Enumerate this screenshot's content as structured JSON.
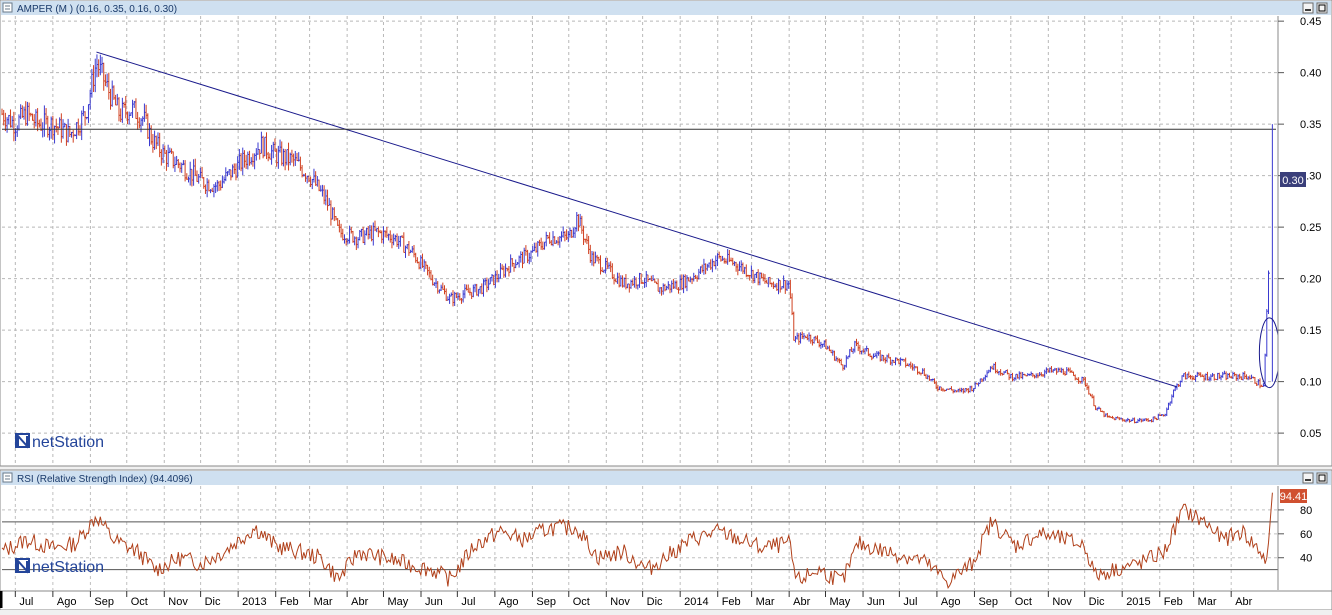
{
  "panels": {
    "price": {
      "title": "AMPER (M ) (0.16, 0.35, 0.16, 0.30)",
      "current_value": "0.30",
      "watermark": "netStation"
    },
    "rsi": {
      "title": "RSI (Relative Strength Index) (94.4096)",
      "current_value": "94.41",
      "watermark": "netStation"
    }
  },
  "colors": {
    "bar_up": "#3a3ad0",
    "bar_down": "#d04020",
    "trendline": "#1a1a8c",
    "rsi_line": "#b0401a",
    "value_badge_price": "#3a3f7a",
    "value_badge_rsi": "#d05030",
    "panel_header": "#cfe0f0",
    "watermark": "#24459a"
  },
  "chart_data": [
    {
      "type": "ohlc",
      "title": "AMPER (M ) (0.16, 0.35, 0.16, 0.30)",
      "y_ticks": [
        "0.05",
        "0.10",
        "0.15",
        "0.20",
        "0.25",
        "0.30",
        "0.35",
        "0.40",
        "0.45"
      ],
      "ylim": [
        0.02,
        0.455
      ],
      "grid": true,
      "x_ticks": [
        "Jul",
        "Ago",
        "Sep",
        "Oct",
        "Nov",
        "Dic",
        "2013",
        "Feb",
        "Mar",
        "Abr",
        "May",
        "Jun",
        "Jul",
        "Ago",
        "Sep",
        "Oct",
        "Nov",
        "Dic",
        "2014",
        "Feb",
        "Mar",
        "Abr",
        "May",
        "Jun",
        "Jul",
        "Ago",
        "Sep",
        "Oct",
        "Nov",
        "Dic",
        "2015",
        "Feb",
        "Mar",
        "Abr"
      ],
      "x_range": [
        "2012-06-20",
        "2015-05-08"
      ],
      "close_series": [
        [
          "2012-06-20",
          0.36
        ],
        [
          "2012-07-01",
          0.35
        ],
        [
          "2012-07-10",
          0.36
        ],
        [
          "2012-07-20",
          0.35
        ],
        [
          "2012-08-01",
          0.35
        ],
        [
          "2012-08-15",
          0.34
        ],
        [
          "2012-08-28",
          0.36
        ],
        [
          "2012-09-06",
          0.41
        ],
        [
          "2012-09-15",
          0.385
        ],
        [
          "2012-09-25",
          0.36
        ],
        [
          "2012-10-05",
          0.365
        ],
        [
          "2012-10-15",
          0.355
        ],
        [
          "2012-10-22",
          0.335
        ],
        [
          "2012-11-01",
          0.32
        ],
        [
          "2012-11-15",
          0.31
        ],
        [
          "2012-12-01",
          0.295
        ],
        [
          "2012-12-15",
          0.29
        ],
        [
          "2012-12-28",
          0.305
        ],
        [
          "2013-01-10",
          0.32
        ],
        [
          "2013-01-20",
          0.33
        ],
        [
          "2013-02-01",
          0.32
        ],
        [
          "2013-02-15",
          0.315
        ],
        [
          "2013-03-01",
          0.3
        ],
        [
          "2013-03-15",
          0.275
        ],
        [
          "2013-03-25",
          0.245
        ],
        [
          "2013-04-10",
          0.24
        ],
        [
          "2013-04-25",
          0.245
        ],
        [
          "2013-05-10",
          0.24
        ],
        [
          "2013-05-25",
          0.225
        ],
        [
          "2013-06-10",
          0.2
        ],
        [
          "2013-06-25",
          0.18
        ],
        [
          "2013-07-05",
          0.185
        ],
        [
          "2013-07-20",
          0.19
        ],
        [
          "2013-08-01",
          0.2
        ],
        [
          "2013-08-15",
          0.215
        ],
        [
          "2013-09-01",
          0.225
        ],
        [
          "2013-09-15",
          0.24
        ],
        [
          "2013-10-01",
          0.24
        ],
        [
          "2013-10-08",
          0.26
        ],
        [
          "2013-10-20",
          0.22
        ],
        [
          "2013-11-01",
          0.21
        ],
        [
          "2013-11-15",
          0.195
        ],
        [
          "2013-12-01",
          0.2
        ],
        [
          "2013-12-15",
          0.19
        ],
        [
          "2014-01-01",
          0.195
        ],
        [
          "2014-01-15",
          0.205
        ],
        [
          "2014-02-01",
          0.22
        ],
        [
          "2014-02-15",
          0.215
        ],
        [
          "2014-03-01",
          0.205
        ],
        [
          "2014-03-15",
          0.195
        ],
        [
          "2014-04-01",
          0.195
        ],
        [
          "2014-04-05",
          0.14
        ],
        [
          "2014-04-15",
          0.145
        ],
        [
          "2014-05-01",
          0.135
        ],
        [
          "2014-05-15",
          0.115
        ],
        [
          "2014-05-25",
          0.135
        ],
        [
          "2014-06-10",
          0.125
        ],
        [
          "2014-07-01",
          0.12
        ],
        [
          "2014-07-20",
          0.11
        ],
        [
          "2014-08-01",
          0.095
        ],
        [
          "2014-08-20",
          0.09
        ],
        [
          "2014-09-01",
          0.095
        ],
        [
          "2014-09-15",
          0.115
        ],
        [
          "2014-10-01",
          0.105
        ],
        [
          "2014-10-15",
          0.105
        ],
        [
          "2014-11-01",
          0.11
        ],
        [
          "2014-11-15",
          0.11
        ],
        [
          "2014-12-01",
          0.1
        ],
        [
          "2014-12-10",
          0.075
        ],
        [
          "2014-12-20",
          0.065
        ],
        [
          "2015-01-10",
          0.062
        ],
        [
          "2015-01-25",
          0.063
        ],
        [
          "2015-02-05",
          0.068
        ],
        [
          "2015-02-12",
          0.09
        ],
        [
          "2015-02-20",
          0.105
        ],
        [
          "2015-03-10",
          0.105
        ],
        [
          "2015-04-01",
          0.105
        ],
        [
          "2015-04-15",
          0.105
        ],
        [
          "2015-04-28",
          0.095
        ],
        [
          "2015-05-05",
          0.3
        ]
      ],
      "trendline": [
        [
          "2012-09-06",
          0.42
        ],
        [
          "2015-02-15",
          0.095
        ]
      ],
      "horizontal_line": 0.345,
      "last_value": 0.3
    },
    {
      "type": "line",
      "title": "RSI (Relative Strength Index) (94.4096)",
      "y_ticks": [
        "40",
        "60",
        "80"
      ],
      "ylim": [
        13,
        100
      ],
      "reference_lines": [
        70,
        30
      ],
      "grid": true,
      "x_range": [
        "2012-06-20",
        "2015-05-08"
      ],
      "series": [
        [
          [
            "2012-06-20",
            45
          ],
          [
            "2012-07-10",
            55
          ],
          [
            "2012-08-01",
            48
          ],
          [
            "2012-08-20",
            52
          ],
          [
            "2012-09-06",
            75
          ],
          [
            "2012-09-20",
            55
          ],
          [
            "2012-10-10",
            45
          ],
          [
            "2012-10-25",
            30
          ],
          [
            "2012-11-15",
            40
          ],
          [
            "2012-12-01",
            35
          ],
          [
            "2012-12-20",
            45
          ],
          [
            "2013-01-15",
            65
          ],
          [
            "2013-02-01",
            50
          ],
          [
            "2013-02-20",
            45
          ],
          [
            "2013-03-10",
            40
          ],
          [
            "2013-03-25",
            22
          ],
          [
            "2013-04-10",
            45
          ],
          [
            "2013-05-01",
            40
          ],
          [
            "2013-05-20",
            35
          ],
          [
            "2013-06-10",
            30
          ],
          [
            "2013-06-25",
            22
          ],
          [
            "2013-07-15",
            50
          ],
          [
            "2013-08-05",
            62
          ],
          [
            "2013-08-25",
            55
          ],
          [
            "2013-09-15",
            65
          ],
          [
            "2013-10-08",
            65
          ],
          [
            "2013-10-25",
            40
          ],
          [
            "2013-11-15",
            45
          ],
          [
            "2013-12-05",
            30
          ],
          [
            "2014-01-10",
            55
          ],
          [
            "2014-02-01",
            62
          ],
          [
            "2014-02-20",
            55
          ],
          [
            "2014-03-10",
            48
          ],
          [
            "2014-04-01",
            52
          ],
          [
            "2014-04-07",
            20
          ],
          [
            "2014-04-25",
            30
          ],
          [
            "2014-05-15",
            20
          ],
          [
            "2014-05-28",
            52
          ],
          [
            "2014-06-20",
            45
          ],
          [
            "2014-07-20",
            38
          ],
          [
            "2014-08-10",
            20
          ],
          [
            "2014-08-30",
            35
          ],
          [
            "2014-09-15",
            70
          ],
          [
            "2014-10-05",
            50
          ],
          [
            "2014-10-25",
            60
          ],
          [
            "2014-11-15",
            55
          ],
          [
            "2014-12-01",
            50
          ],
          [
            "2014-12-10",
            25
          ],
          [
            "2014-12-25",
            30
          ],
          [
            "2015-01-15",
            35
          ],
          [
            "2015-02-05",
            45
          ],
          [
            "2015-02-20",
            80
          ],
          [
            "2015-03-10",
            70
          ],
          [
            "2015-03-25",
            55
          ],
          [
            "2015-04-10",
            62
          ],
          [
            "2015-04-25",
            45
          ],
          [
            "2015-05-01",
            35
          ],
          [
            "2015-05-05",
            94.41
          ]
        ]
      ],
      "last_value": 94.41
    }
  ]
}
